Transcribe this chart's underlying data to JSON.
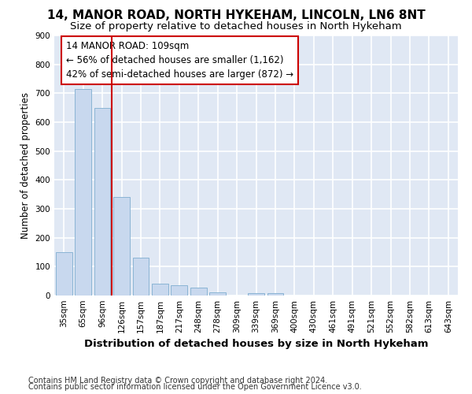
{
  "title1": "14, MANOR ROAD, NORTH HYKEHAM, LINCOLN, LN6 8NT",
  "title2": "Size of property relative to detached houses in North Hykeham",
  "xlabel": "Distribution of detached houses by size in North Hykeham",
  "ylabel": "Number of detached properties",
  "categories": [
    "35sqm",
    "65sqm",
    "96sqm",
    "126sqm",
    "157sqm",
    "187sqm",
    "217sqm",
    "248sqm",
    "278sqm",
    "309sqm",
    "339sqm",
    "369sqm",
    "400sqm",
    "430sqm",
    "461sqm",
    "491sqm",
    "521sqm",
    "552sqm",
    "582sqm",
    "613sqm",
    "643sqm"
  ],
  "values": [
    150,
    715,
    650,
    340,
    130,
    42,
    35,
    27,
    10,
    0,
    8,
    8,
    0,
    0,
    0,
    0,
    0,
    0,
    0,
    0,
    0
  ],
  "bar_color": "#c8d8ee",
  "bar_edge_color": "#8ab4d4",
  "bg_color": "#e0e8f4",
  "grid_color": "#ffffff",
  "fig_bg_color": "#ffffff",
  "vline_x": 2.5,
  "vline_color": "#cc0000",
  "annotation_text": "14 MANOR ROAD: 109sqm\n← 56% of detached houses are smaller (1,162)\n42% of semi-detached houses are larger (872) →",
  "annotation_box_color": "#ffffff",
  "annotation_box_edge_color": "#cc0000",
  "ylim": [
    0,
    900
  ],
  "yticks": [
    0,
    100,
    200,
    300,
    400,
    500,
    600,
    700,
    800,
    900
  ],
  "title1_fontsize": 11,
  "title2_fontsize": 9.5,
  "ylabel_fontsize": 8.5,
  "xlabel_fontsize": 9.5,
  "tick_fontsize": 7.5,
  "annot_fontsize": 8.5,
  "footer1": "Contains HM Land Registry data © Crown copyright and database right 2024.",
  "footer2": "Contains public sector information licensed under the Open Government Licence v3.0.",
  "footer_fontsize": 7
}
